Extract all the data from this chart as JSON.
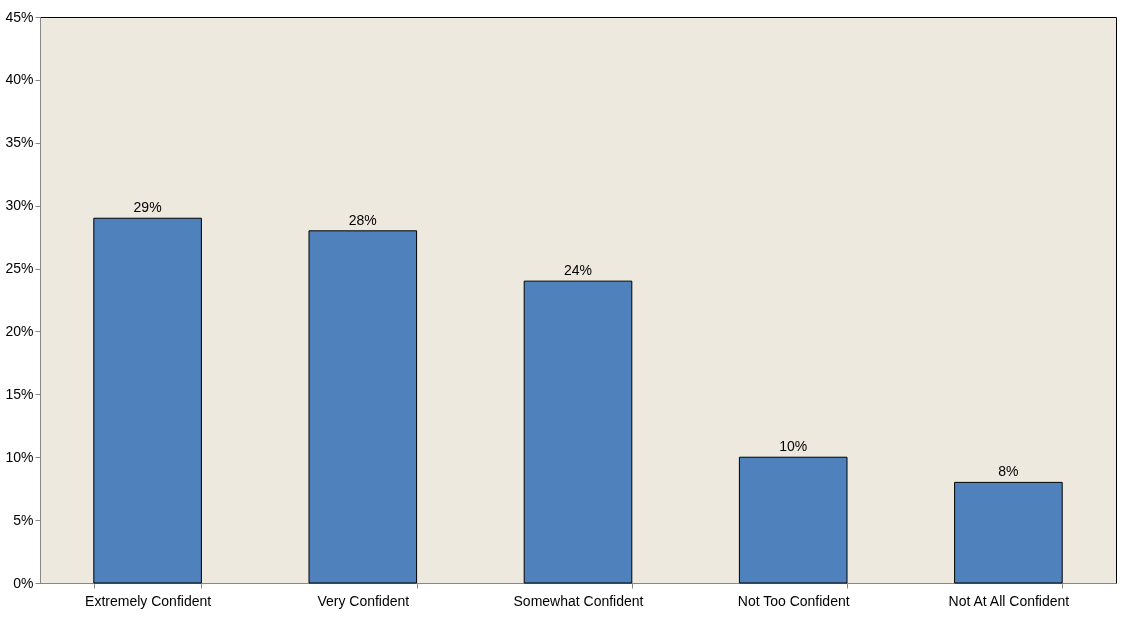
{
  "chart_data": {
    "type": "bar",
    "categories": [
      "Extremely Confident",
      "Very Confident",
      "Somewhat Confident",
      "Not Too Confident",
      "Not At All Confident"
    ],
    "values": [
      29,
      28,
      24,
      10,
      8
    ],
    "value_labels": [
      "29%",
      "28%",
      "24%",
      "10%",
      "8%"
    ],
    "color": "#4f81bd",
    "ylim": [
      0,
      45
    ],
    "yticks": [
      {
        "value": 0,
        "label": "0%"
      },
      {
        "value": 5,
        "label": "5%"
      },
      {
        "value": 10,
        "label": "10%"
      },
      {
        "value": 15,
        "label": "15%"
      },
      {
        "value": 20,
        "label": "20%"
      },
      {
        "value": 25,
        "label": "25%"
      },
      {
        "value": 30,
        "label": "30%"
      },
      {
        "value": 35,
        "label": "35%"
      },
      {
        "value": 40,
        "label": "40%"
      },
      {
        "value": 45,
        "label": "45%"
      }
    ],
    "grid": false
  }
}
